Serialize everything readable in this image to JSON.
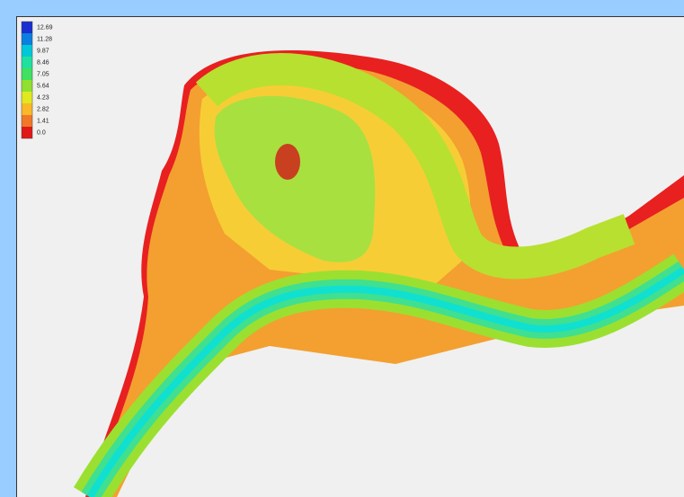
{
  "legend": {
    "entries": [
      {
        "label": "12.69",
        "color": "#1a2fd0"
      },
      {
        "label": "11.28",
        "color": "#0a7fe0"
      },
      {
        "label": "9.87",
        "color": "#00c8d8"
      },
      {
        "label": "8.46",
        "color": "#20e0a0"
      },
      {
        "label": "7.05",
        "color": "#40e060"
      },
      {
        "label": "5.64",
        "color": "#90e030"
      },
      {
        "label": "4.23",
        "color": "#e0e820"
      },
      {
        "label": "2.82",
        "color": "#f8b828"
      },
      {
        "label": "1.41",
        "color": "#f07828"
      },
      {
        "label": "0.0",
        "color": "#e01818"
      }
    ]
  }
}
